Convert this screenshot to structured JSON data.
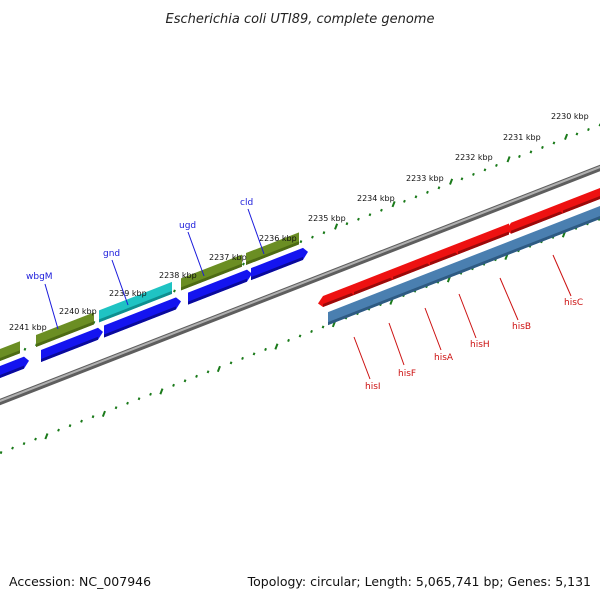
{
  "title": "Escherichia coli UTI89, complete genome",
  "footer": {
    "accession": "Accession: NC_007946",
    "summary": "Topology: circular; Length: 5,065,741 bp; Genes: 5,131"
  },
  "colors": {
    "background": "#ffffff",
    "backbone": "#888888",
    "ticks": "#1a7a1a",
    "blue_gene": "#1414f0",
    "olive_gene": "#6b8e23",
    "cyan_gene": "#1fc3c3",
    "red_gene": "#ee1111",
    "steel_gene": "#4a7fb0",
    "blue_label": "#1a1adb",
    "red_label": "#cc1111"
  },
  "scale_ticks": [
    {
      "label": "2230 kbp",
      "kbp": 2230
    },
    {
      "label": "2231 kbp",
      "kbp": 2231
    },
    {
      "label": "2232 kbp",
      "kbp": 2232
    },
    {
      "label": "2233 kbp",
      "kbp": 2233
    },
    {
      "label": "2234 kbp",
      "kbp": 2234
    },
    {
      "label": "2235 kbp",
      "kbp": 2235
    },
    {
      "label": "2236 kbp",
      "kbp": 2236
    },
    {
      "label": "2237 kbp",
      "kbp": 2237
    },
    {
      "label": "2238 kbp",
      "kbp": 2238
    },
    {
      "label": "2239 kbp",
      "kbp": 2239
    },
    {
      "label": "2240 kbp",
      "kbp": 2240
    },
    {
      "label": "2241 kbp",
      "kbp": 2241
    }
  ],
  "genes_above": [
    {
      "name": "wbgM",
      "color": "blue_label"
    },
    {
      "name": "gnd",
      "color": "blue_label"
    },
    {
      "name": "ugd",
      "color": "blue_label"
    },
    {
      "name": "cld",
      "color": "blue_label"
    }
  ],
  "genes_below": [
    {
      "name": "hisI",
      "color": "red_label"
    },
    {
      "name": "hisF",
      "color": "red_label"
    },
    {
      "name": "hisA",
      "color": "red_label"
    },
    {
      "name": "hisH",
      "color": "red_label"
    },
    {
      "name": "hisB",
      "color": "red_label"
    },
    {
      "name": "hisC",
      "color": "red_label"
    }
  ]
}
